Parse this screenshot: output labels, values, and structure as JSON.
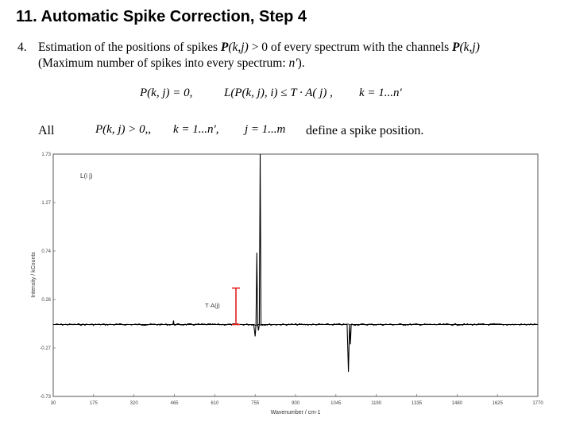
{
  "slide": {
    "title": "11. Automatic Spike Correction, Step 4",
    "item_number": "4.",
    "para_part1": "Estimation of the positions of spikes ",
    "para_P1": "P",
    "para_kj1": "(k,j)",
    "para_part2": " > 0 of every spectrum with the channels ",
    "para_P2": "P",
    "para_kj2": "(k,j)",
    "para_line2_a": "(Maximum number of spikes into every spectrum: ",
    "para_line2_n": "n'",
    "para_line2_b": ").",
    "formula1_a": "P(k, j) = 0,",
    "formula1_b": "L(P(k, j), i) ≤ T · A( j) ,",
    "formula1_c": "k = 1...n'",
    "all_label": "All",
    "formula2_a": "P(k, j) > 0,,",
    "formula2_b": "k = 1...n',",
    "formula2_c": "j = 1...m",
    "define_text": "define a spike position."
  },
  "chart_data": {
    "type": "line",
    "xlabel": "Wavenumber / cm-1",
    "ylabel": "Intensity / kCounts",
    "xlim": [
      30,
      1770
    ],
    "ylim": [
      -0.73,
      1.73
    ],
    "x_ticks": [
      "30",
      "175",
      "320",
      "465",
      "610",
      "755",
      "900",
      "1045",
      "1190",
      "1335",
      "1480",
      "1625",
      "1770"
    ],
    "y_ticks": [
      "1.73",
      "1.27",
      "0.74",
      "0.26",
      "-0.27",
      "-0.73"
    ],
    "legend_label": "L(i j)",
    "annotation": "T·A(j)",
    "annotation_color": "#e02020",
    "line_color": "#000000",
    "baseline": 0.0,
    "threshold_top": 0.37,
    "series": [
      {
        "values": [
          [
            30,
            0.0
          ],
          [
            460,
            0.0
          ],
          [
            462,
            0.04
          ],
          [
            464,
            0.0
          ],
          [
            750,
            0.0
          ],
          [
            755,
            -0.12
          ],
          [
            758,
            0.0
          ],
          [
            761,
            0.73
          ],
          [
            764,
            0.0
          ],
          [
            767,
            -0.06
          ],
          [
            770,
            0.0
          ],
          [
            773,
            1.73
          ],
          [
            776,
            0.0
          ],
          [
            779,
            0.0
          ],
          [
            1085,
            0.0
          ],
          [
            1090,
            -0.48
          ],
          [
            1094,
            0.0
          ],
          [
            1097,
            -0.2
          ],
          [
            1100,
            0.0
          ],
          [
            1770,
            0.0
          ]
        ]
      }
    ]
  }
}
